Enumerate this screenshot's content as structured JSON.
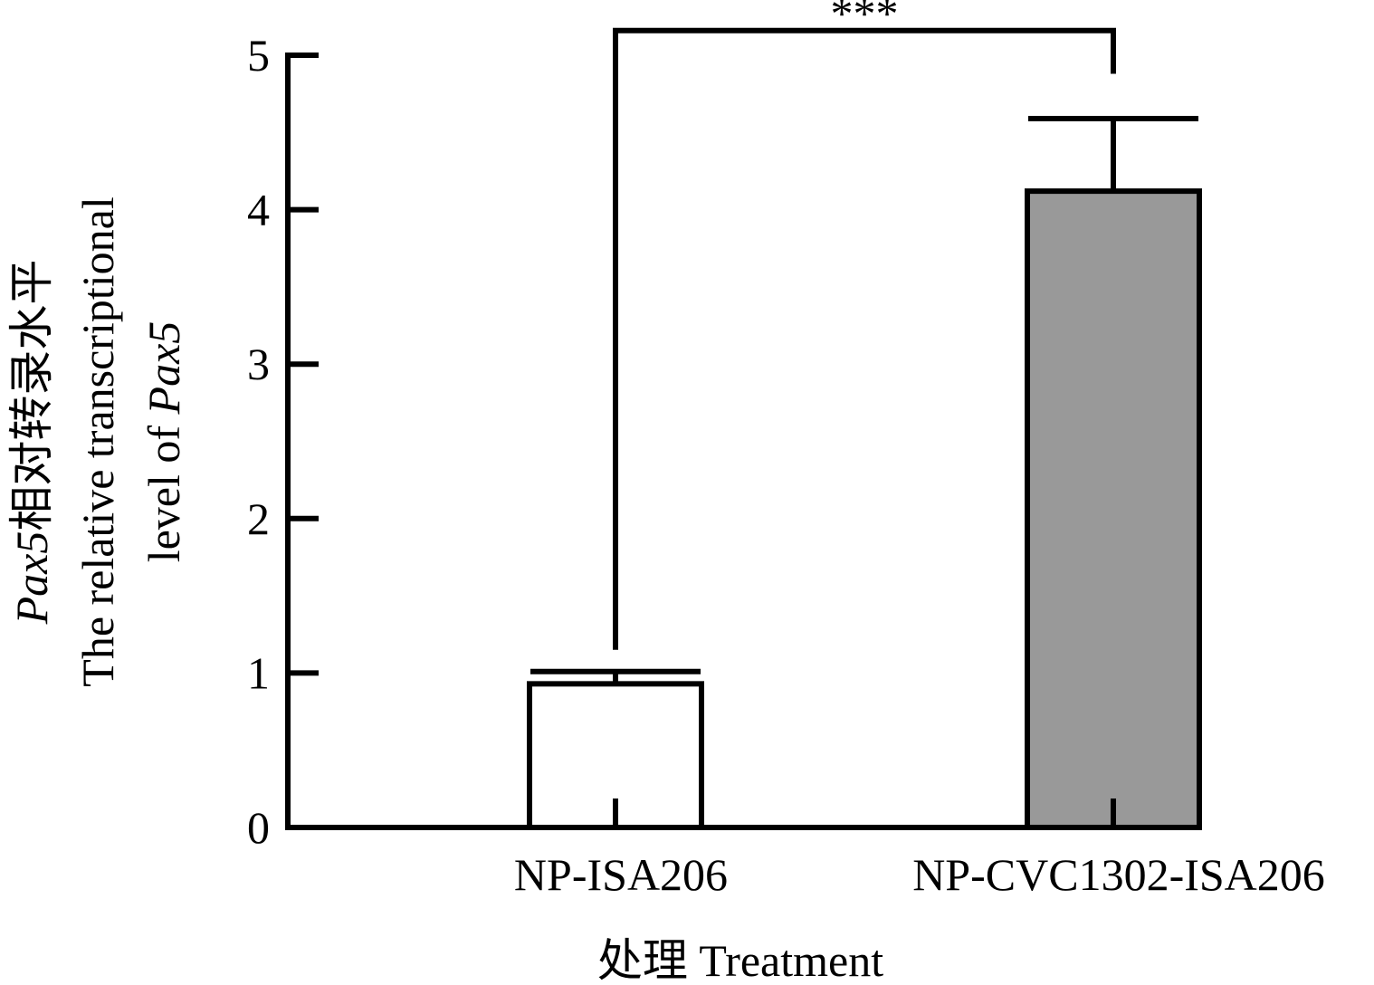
{
  "chart_data": {
    "type": "bar",
    "categories": [
      "NP-ISA206",
      "NP-CVC1302-ISA206"
    ],
    "values": [
      0.93,
      4.12
    ],
    "errors": [
      0.08,
      0.47
    ],
    "bar_colors": [
      "#ffffff",
      "#999999"
    ],
    "axis_color": "#000000",
    "ylim": [
      0,
      5
    ],
    "yticks": [
      0,
      1,
      2,
      3,
      4,
      5
    ],
    "ytick_labels": [
      "0",
      "1",
      "2",
      "3",
      "4",
      "5"
    ],
    "xlabel": "处理 Treatment",
    "ylabel": {
      "line1_italic": "Pax5",
      "line1_rest": "相对转录水平",
      "line2": "The relative transcriptional",
      "line3_prefix": "level of ",
      "line3_italic": "Pax5"
    },
    "significance": {
      "label": "***",
      "between": [
        0,
        1
      ],
      "bracket_value": 5.16,
      "left_end_value": 1.15,
      "right_end_value": 4.88
    }
  }
}
